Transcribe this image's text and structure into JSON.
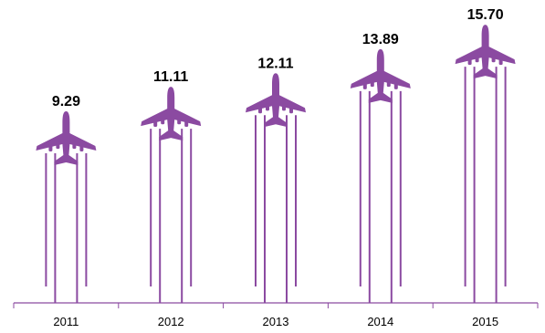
{
  "chart_data": {
    "type": "bar",
    "categories": [
      "2011",
      "2012",
      "2013",
      "2014",
      "2015"
    ],
    "values": [
      9.29,
      11.11,
      12.11,
      13.89,
      15.7
    ],
    "value_labels": [
      "9.29",
      "11.11",
      "12.11",
      "13.89",
      "15.70"
    ],
    "title": "",
    "xlabel": "",
    "ylabel": "",
    "ylim": [
      0,
      16
    ],
    "grid": false,
    "legend": "none",
    "mark_icon": "airplane-icon",
    "colors": {
      "mark": "#8b4aa1",
      "axis": "#8b4aa1",
      "text": "#000000"
    }
  }
}
